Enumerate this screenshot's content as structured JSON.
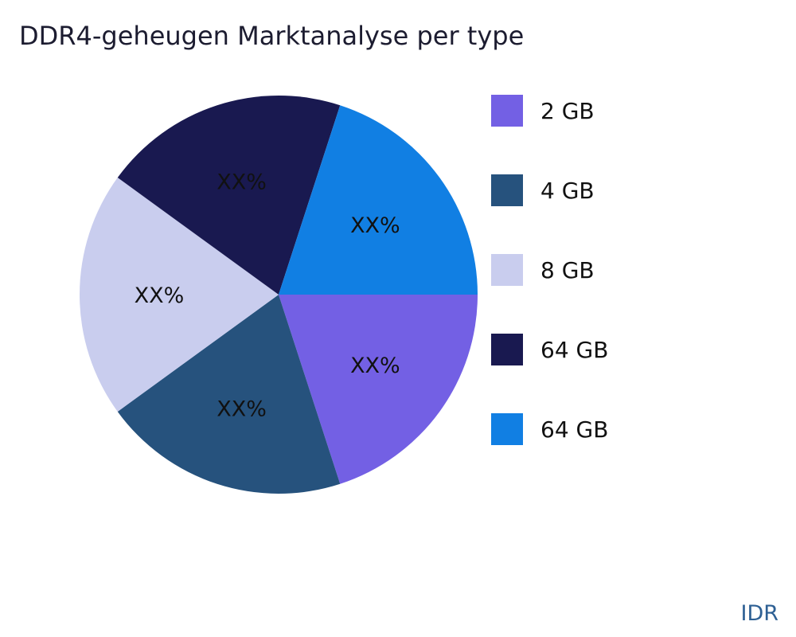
{
  "title": "DDR4-geheugen Marktanalyse per type",
  "watermark": "IDR",
  "chart_data": {
    "type": "pie",
    "title": "DDR4-geheugen Marktanalyse per type",
    "legend_position": "right",
    "start_angle_deg": 0,
    "direction": "clockwise",
    "slices": [
      {
        "label": "2 GB",
        "value": 20,
        "display_label": "XX%",
        "color": "#7360e4"
      },
      {
        "label": "4 GB",
        "value": 20,
        "display_label": "XX%",
        "color": "#26527d"
      },
      {
        "label": "8 GB",
        "value": 20,
        "display_label": "XX%",
        "color": "#c9cdee"
      },
      {
        "label": "64 GB",
        "value": 20,
        "display_label": "XX%",
        "color": "#191950"
      },
      {
        "label": "64 GB",
        "value": 20,
        "display_label": "XX%",
        "color": "#117fe3"
      }
    ]
  }
}
